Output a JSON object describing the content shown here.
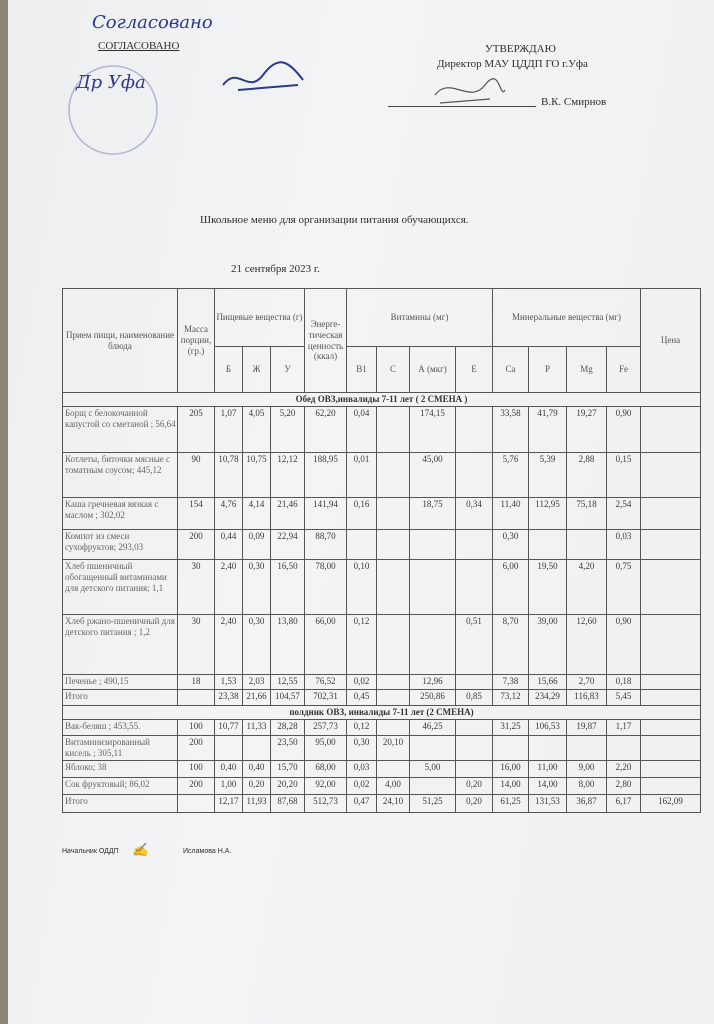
{
  "header": {
    "left_label": "СОГЛАСОВАНО",
    "left_signature": "Согласовано",
    "left_signer": "Др Уфа",
    "right_label": "УТВЕРЖДАЮ",
    "right_position": "Директор МАУ ЦДДП ГО г.Уфа",
    "right_signer": "В.К. Смирнов"
  },
  "title": "Школьное меню для организации питания обучающихся.",
  "date": "21 сентября 2023 г.",
  "table": {
    "headers": {
      "name": "Прием пищи, наименование блюда",
      "mass": "Масса порции, (гр.)",
      "nutrients": "Пищевые вещества (г)",
      "energy": "Энерге-тическая ценность (ккал)",
      "vitamins": "Витамины (мг)",
      "minerals": "Минеральные вещества (мг)",
      "price": "Цена",
      "sub": [
        "Б",
        "Ж",
        "У",
        "B1",
        "C",
        "А (мкг)",
        "Е",
        "Ca",
        "P",
        "Mg",
        "Fe"
      ]
    },
    "sections": [
      {
        "title": "Обед ОВЗ,инвалиды 7-11 лет ( 2 СМЕНА )",
        "rows": [
          [
            "Борщ с белокочанной капустой со сметаной ; 56,64",
            "205",
            "1,07",
            "4,05",
            "5,20",
            "62,20",
            "0,04",
            "",
            "174,15",
            "",
            "33,58",
            "41,79",
            "19,27",
            "0,90",
            ""
          ],
          [
            "Котлеты, биточки мясные  с томатным соусом; 445,12",
            "90",
            "10,78",
            "10,75",
            "12,12",
            "188,95",
            "0,01",
            "",
            "45,00",
            "",
            "5,76",
            "5,39",
            "2,88",
            "0,15",
            ""
          ],
          [
            "Каша гречневая вязкая с маслом ; 302,02",
            "154",
            "4,76",
            "4,14",
            "21,46",
            "141,94",
            "0,16",
            "",
            "18,75",
            "0,34",
            "11,40",
            "112,95",
            "75,18",
            "2,54",
            ""
          ],
          [
            "Компот из смеси сухофруктов; 293,03",
            "200",
            "0,44",
            "0,09",
            "22,94",
            "88,70",
            "",
            "",
            "",
            "",
            "0,30",
            "",
            "",
            "0,03",
            ""
          ],
          [
            "Хлеб пшеничный обогащенный витаминами для детского питания; 1,1",
            "30",
            "2,40",
            "0,30",
            "16,50",
            "78,00",
            "0,10",
            "",
            "",
            "",
            "6,00",
            "19,50",
            "4,20",
            "0,75",
            ""
          ],
          [
            "Хлеб ржано-пшеничный для детского питания ; 1,2",
            "30",
            "2,40",
            "0,30",
            "13,80",
            "66,00",
            "0,12",
            "",
            "",
            "0,51",
            "8,70",
            "39,00",
            "12,60",
            "0,90",
            ""
          ],
          [
            "Печенье ; 490,15",
            "18",
            "1,53",
            "2,03",
            "12,55",
            "76,52",
            "0,02",
            "",
            "12,96",
            "",
            "7,38",
            "15,66",
            "2,70",
            "0,18",
            ""
          ],
          [
            "Итого",
            "",
            "23,38",
            "21,66",
            "104,57",
            "702,31",
            "0,45",
            "",
            "250,86",
            "0,85",
            "73,12",
            "234,29",
            "116,83",
            "5,45",
            ""
          ]
        ]
      },
      {
        "title": "полдник ОВЗ, инвалиды 7-11 лет (2 СМЕНА)",
        "rows": [
          [
            "Вак-беляш ; 453,55.",
            "100",
            "10,77",
            "11,33",
            "28,28",
            "257,73",
            "0,12",
            "",
            "46,25",
            "",
            "31,25",
            "106,53",
            "19,87",
            "1,17",
            ""
          ],
          [
            "Витаминизированный кисель ; 305,11",
            "200",
            "",
            "",
            "23,50",
            "95,00",
            "0,30",
            "20,10",
            "",
            "",
            "",
            "",
            "",
            "",
            ""
          ],
          [
            "Яблоко; 38",
            "100",
            "0,40",
            "0,40",
            "15,70",
            "68,00",
            "0,03",
            "",
            "5,00",
            "",
            "16,00",
            "11,00",
            "9,00",
            "2,20",
            ""
          ],
          [
            "Сок фруктовый; 86,02",
            "200",
            "1,00",
            "0,20",
            "20,20",
            "92,00",
            "0,02",
            "4,00",
            "",
            "0,20",
            "14,00",
            "14,00",
            "8,00",
            "2,80",
            ""
          ],
          [
            "Итого",
            "",
            "12,17",
            "11,93",
            "87,68",
            "512,73",
            "0,47",
            "24,10",
            "51,25",
            "0,20",
            "61,25",
            "131,53",
            "36,87",
            "6,17",
            "162,09"
          ]
        ]
      }
    ]
  },
  "footer": {
    "position": "Начальник ОДДП",
    "signer": "Исламова Н.А."
  }
}
